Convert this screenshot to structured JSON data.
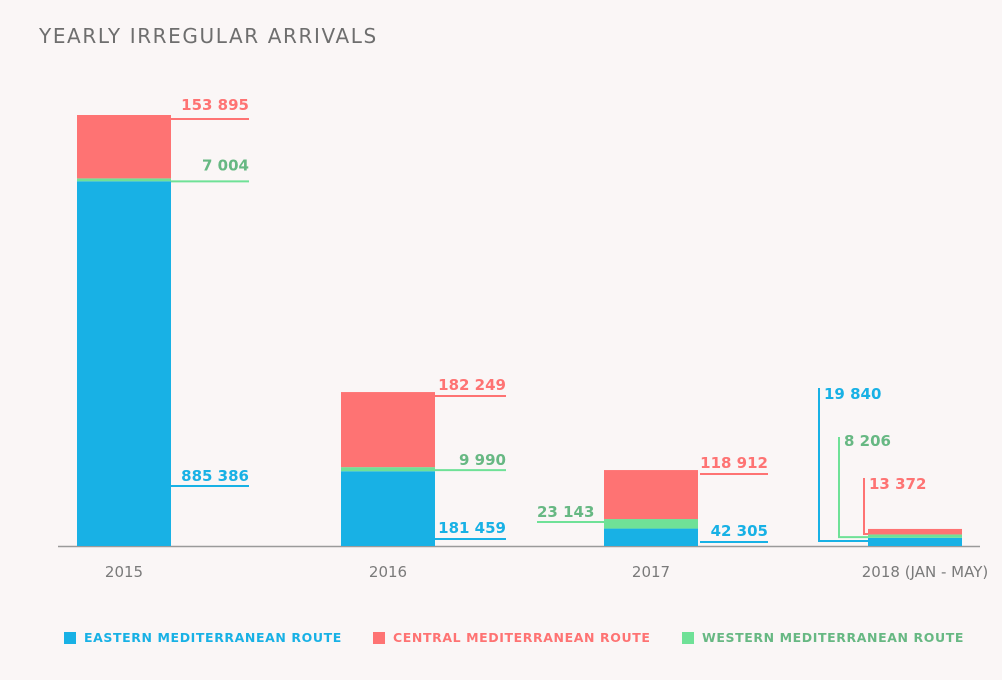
{
  "chart_data": {
    "type": "bar",
    "stacked": true,
    "title": "YEARLY IRREGULAR ARRIVALS",
    "xlabel": "",
    "ylabel": "",
    "grid": false,
    "legend_position": "bottom",
    "categories": [
      "2015",
      "2016",
      "2017",
      "2018 (JAN - MAY)"
    ],
    "series": [
      {
        "name": "EASTERN MEDITERRANEAN ROUTE",
        "color": "#18b1e5",
        "text_color": "#18b1e5",
        "values": [
          885386,
          181459,
          42305,
          19840
        ],
        "labels": [
          "885 386",
          "181 459",
          "42 305",
          "19 840"
        ]
      },
      {
        "name": "WESTERN MEDITERRANEAN ROUTE",
        "color": "#6fe197",
        "text_color": "#67b883",
        "values": [
          7004,
          9990,
          23143,
          8206
        ],
        "labels": [
          "7 004",
          "9 990",
          "23 143",
          "8 206"
        ]
      },
      {
        "name": "CENTRAL MEDITERRANEAN ROUTE",
        "color": "#fe7373",
        "text_color": "#fe7373",
        "values": [
          153895,
          182249,
          118912,
          13372
        ],
        "labels": [
          "153 895",
          "182 249",
          "118 912",
          "13 372"
        ]
      }
    ],
    "legend_order": [
      "EASTERN MEDITERRANEAN ROUTE",
      "CENTRAL MEDITERRANEAN ROUTE",
      "WESTERN MEDITERRANEAN ROUTE"
    ],
    "ylim": [
      0,
      1046285
    ]
  },
  "colors": {
    "axis": "#9a9a9a",
    "tick_label": "#7a7a7a",
    "title": "#6e6e6e"
  }
}
